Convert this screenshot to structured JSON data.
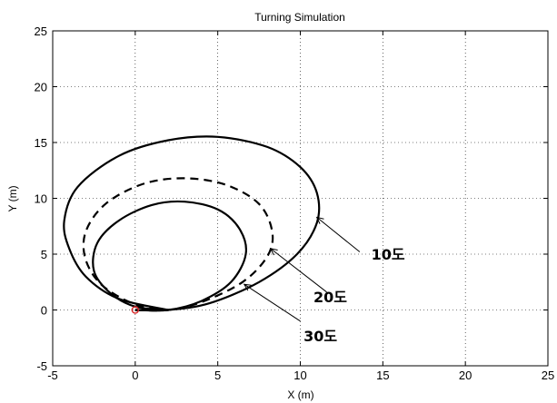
{
  "chart_data": {
    "type": "line",
    "title": "Turning Simulation",
    "xlabel": "X (m)",
    "ylabel": "Y (m)",
    "xlim": [
      -5,
      25
    ],
    "ylim": [
      -5,
      25
    ],
    "xticks": [
      -5,
      0,
      5,
      10,
      15,
      20,
      25
    ],
    "yticks": [
      -5,
      0,
      5,
      10,
      15,
      20,
      25
    ],
    "grid": true,
    "start_marker": {
      "x": 0,
      "y": 0,
      "shape": "circle",
      "color": "#d62728"
    },
    "series": [
      {
        "name": "10도",
        "style": "solid",
        "color": "#000000",
        "x": [
          0,
          2.0,
          4.5,
          7.5,
          9.8,
          11.0,
          11.0,
          10.0,
          8.0,
          5.0,
          2.0,
          -1.0,
          -3.5,
          -4.3,
          -4.0,
          -3.0,
          -1.0,
          2.0
        ],
        "y": [
          0,
          0,
          0.6,
          2.5,
          5.0,
          7.8,
          10.5,
          12.8,
          14.6,
          15.5,
          15.2,
          13.8,
          11.0,
          8.0,
          5.5,
          3.0,
          1.0,
          0
        ]
      },
      {
        "name": "20도",
        "style": "dashed",
        "color": "#000000",
        "x": [
          0,
          2.0,
          4.0,
          6.5,
          8.0,
          8.3,
          7.5,
          5.5,
          3.0,
          0.5,
          -1.8,
          -3.0,
          -3.0,
          -2.0,
          0,
          2.0
        ],
        "y": [
          0,
          0,
          0.7,
          2.5,
          4.8,
          7.0,
          9.5,
          11.2,
          11.8,
          11.3,
          9.5,
          7.0,
          4.5,
          2.2,
          0.5,
          0
        ]
      },
      {
        "name": "30도",
        "style": "solid",
        "color": "#000000",
        "x": [
          0,
          2.0,
          4.0,
          5.8,
          6.7,
          6.3,
          5.0,
          3.0,
          1.0,
          -1.0,
          -2.3,
          -2.5,
          -1.5,
          0,
          2.0
        ],
        "y": [
          0,
          0,
          0.8,
          2.5,
          5.0,
          7.3,
          9.0,
          9.7,
          9.4,
          8.0,
          6.0,
          3.5,
          1.5,
          0.3,
          0
        ]
      }
    ],
    "annotations": [
      {
        "label": "10도",
        "x": 14.3,
        "y": 4.5,
        "arrow_x1": 13.6,
        "arrow_y1": 5.2,
        "arrow_x2": 11.0,
        "arrow_y2": 8.3
      },
      {
        "label": "20도",
        "x": 10.8,
        "y": 0.7,
        "arrow_x1": 11.6,
        "arrow_y1": 1.6,
        "arrow_x2": 8.2,
        "arrow_y2": 5.5
      },
      {
        "label": "30도",
        "x": 10.2,
        "y": -2.8,
        "arrow_x1": 10.0,
        "arrow_y1": -1.0,
        "arrow_x2": 6.6,
        "arrow_y2": 2.3
      }
    ]
  }
}
